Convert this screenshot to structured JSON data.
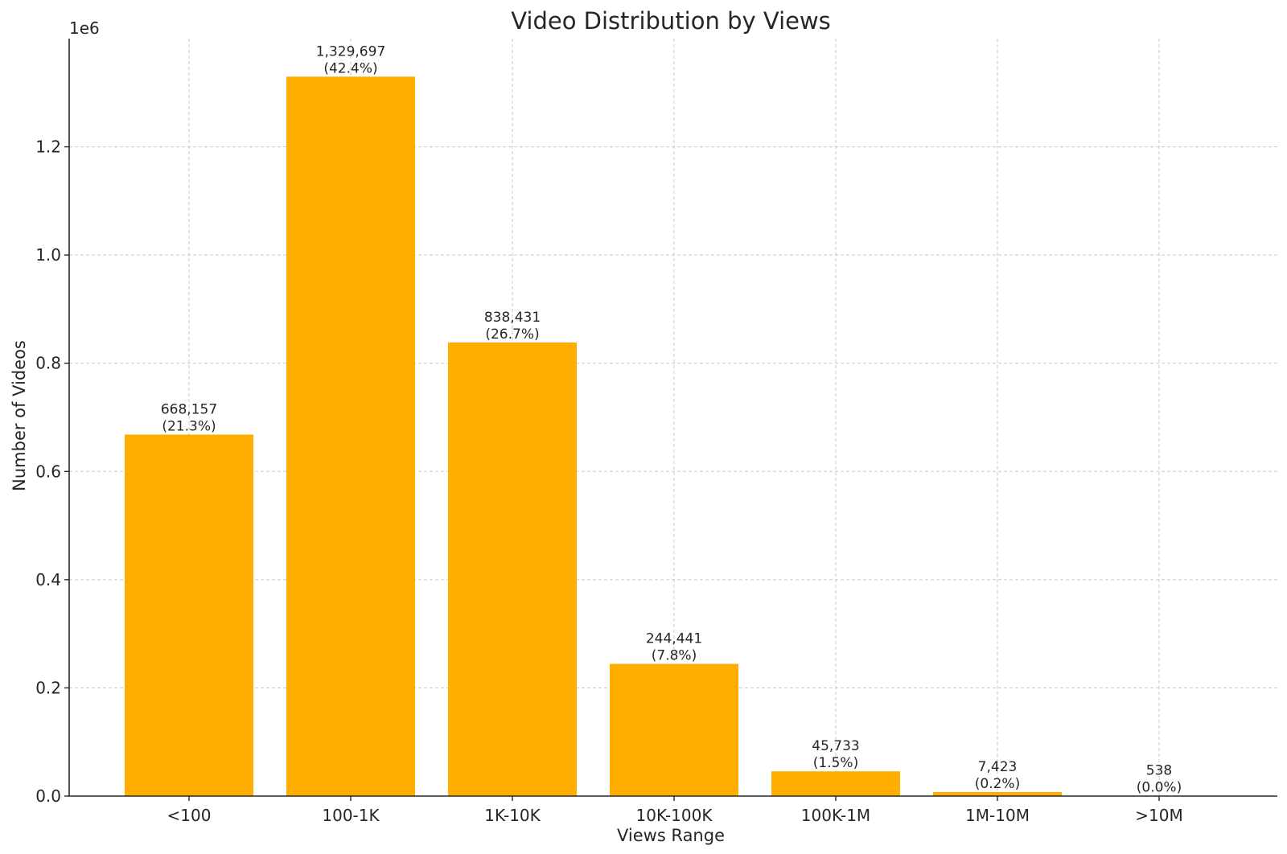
{
  "chart_data": {
    "type": "bar",
    "title": "Video Distribution by Views",
    "xlabel": "Views Range",
    "ylabel": "Number of Videos",
    "y_offset_label": "1e6",
    "categories": [
      "<100",
      "100-1K",
      "1K-10K",
      "10K-100K",
      "100K-1M",
      "1M-10M",
      ">10M"
    ],
    "values": [
      668157,
      1329697,
      838431,
      244441,
      45733,
      7423,
      538
    ],
    "value_labels": [
      "668,157",
      "1,329,697",
      "838,431",
      "244,441",
      "45,733",
      "7,423",
      "538"
    ],
    "percent_labels": [
      "(21.3%)",
      "(42.4%)",
      "(26.7%)",
      "(7.8%)",
      "(1.5%)",
      "(0.2%)",
      "(0.0%)"
    ],
    "ylim": [
      0,
      1400000
    ],
    "yticks": [
      0,
      200000,
      400000,
      600000,
      800000,
      1000000,
      1200000
    ],
    "ytick_labels": [
      "0.0",
      "0.2",
      "0.4",
      "0.6",
      "0.8",
      "1.0",
      "1.2"
    ],
    "grid": true,
    "bar_color": "#ffae00"
  }
}
